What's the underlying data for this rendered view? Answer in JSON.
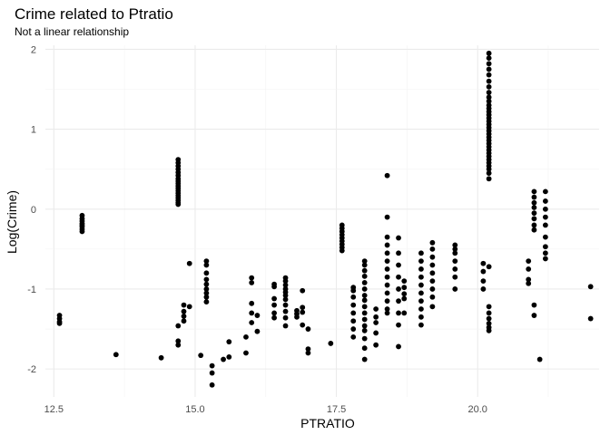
{
  "chart_data": {
    "type": "scatter",
    "title": "Crime related to Ptratio",
    "subtitle": "Not a linear relationship",
    "xlabel": "PTRATIO",
    "ylabel": "Log(Crime)",
    "xlim": [
      12.35,
      22.15
    ],
    "ylim": [
      -2.35,
      2.05
    ],
    "x_ticks": [
      12.5,
      15.0,
      17.5,
      20.0
    ],
    "x_tick_labels": [
      "12.5",
      "15.0",
      "17.5",
      "20.0"
    ],
    "y_ticks": [
      -2,
      -1,
      0,
      1,
      2
    ],
    "y_tick_labels": [
      "-2",
      "-1",
      "0",
      "1",
      "2"
    ],
    "grid": true,
    "point_color": "#000000",
    "columns": [
      {
        "x": 12.6,
        "y": [
          -1.33,
          -1.37,
          -1.41,
          -1.43
        ]
      },
      {
        "x": 13.0,
        "y": [
          -0.08,
          -0.12,
          -0.15,
          -0.18,
          -0.2,
          -0.22,
          -0.25,
          -0.28
        ]
      },
      {
        "x": 13.6,
        "y": [
          -1.82
        ]
      },
      {
        "x": 14.4,
        "y": [
          -1.86
        ]
      },
      {
        "x": 14.7,
        "y": [
          0.62,
          0.58,
          0.54,
          0.5,
          0.46,
          0.42,
          0.38,
          0.35,
          0.32,
          0.29,
          0.26,
          0.23,
          0.2,
          0.17,
          0.14,
          0.11,
          0.08,
          0.06,
          -1.46,
          -1.65,
          -1.7
        ]
      },
      {
        "x": 14.8,
        "y": [
          -1.2,
          -1.28,
          -1.34,
          -1.4
        ]
      },
      {
        "x": 14.9,
        "y": [
          -0.68,
          -1.22
        ]
      },
      {
        "x": 15.1,
        "y": [
          -1.83
        ]
      },
      {
        "x": 15.2,
        "y": [
          -0.65,
          -0.7,
          -0.8,
          -0.88,
          -0.94,
          -1.0,
          -1.05,
          -1.1,
          -1.16
        ]
      },
      {
        "x": 15.3,
        "y": [
          -1.96,
          -2.05,
          -2.2
        ]
      },
      {
        "x": 15.5,
        "y": [
          -1.88
        ]
      },
      {
        "x": 15.6,
        "y": [
          -1.66,
          -1.85
        ]
      },
      {
        "x": 15.9,
        "y": [
          -1.6,
          -1.8
        ]
      },
      {
        "x": 16.0,
        "y": [
          -0.86,
          -0.92,
          -1.18,
          -1.3,
          -1.42
        ]
      },
      {
        "x": 16.1,
        "y": [
          -1.33,
          -1.53
        ]
      },
      {
        "x": 16.4,
        "y": [
          -0.94,
          -0.97,
          -1.12,
          -1.2,
          -1.3,
          -1.36
        ]
      },
      {
        "x": 16.6,
        "y": [
          -0.86,
          -0.9,
          -0.95,
          -1.0,
          -1.04,
          -1.08,
          -1.13,
          -1.2,
          -1.28,
          -1.36,
          -1.46
        ]
      },
      {
        "x": 16.8,
        "y": [
          -1.27,
          -1.31,
          -1.35
        ]
      },
      {
        "x": 16.9,
        "y": [
          -1.02,
          -1.23,
          -1.29,
          -1.45
        ]
      },
      {
        "x": 17.0,
        "y": [
          -1.5,
          -1.75,
          -1.8
        ]
      },
      {
        "x": 17.4,
        "y": [
          -1.68
        ]
      },
      {
        "x": 17.6,
        "y": [
          -0.2,
          -0.24,
          -0.28,
          -0.32,
          -0.36,
          -0.4,
          -0.44,
          -0.48,
          -0.52
        ]
      },
      {
        "x": 17.8,
        "y": [
          -0.98,
          -1.02,
          -1.1,
          -1.2,
          -1.3,
          -1.4,
          -1.5,
          -1.6
        ]
      },
      {
        "x": 18.0,
        "y": [
          -0.65,
          -0.7,
          -0.77,
          -0.84,
          -0.92,
          -1.0,
          -1.08,
          -1.14,
          -1.22,
          -1.3,
          -1.38,
          -1.46,
          -1.52,
          -1.62,
          -1.74,
          -1.88
        ]
      },
      {
        "x": 18.2,
        "y": [
          -1.25,
          -1.35,
          -1.42,
          -1.55,
          -1.7
        ]
      },
      {
        "x": 18.4,
        "y": [
          0.42,
          -0.1,
          -0.35,
          -0.45,
          -0.55,
          -0.65,
          -0.75,
          -0.85,
          -0.95,
          -1.05,
          -1.15,
          -1.25,
          -1.3
        ]
      },
      {
        "x": 18.6,
        "y": [
          -0.36,
          -0.55,
          -0.7,
          -0.85,
          -1.0,
          -1.15,
          -1.3,
          -1.45,
          -1.72
        ]
      },
      {
        "x": 18.7,
        "y": [
          -0.9,
          -0.98,
          -1.06,
          -1.12,
          -1.3
        ]
      },
      {
        "x": 19.0,
        "y": [
          -0.55,
          -0.65,
          -0.75,
          -0.85,
          -0.95,
          -1.05,
          -1.15,
          -1.25,
          -1.35,
          -1.45
        ]
      },
      {
        "x": 19.2,
        "y": [
          -0.42,
          -0.5,
          -0.6,
          -0.7,
          -0.8,
          -0.9,
          -1.0,
          -1.1,
          -1.22
        ]
      },
      {
        "x": 19.6,
        "y": [
          -0.45,
          -0.5,
          -0.55,
          -0.65,
          -0.75,
          -0.85,
          -1.0
        ]
      },
      {
        "x": 20.1,
        "y": [
          -0.68,
          -0.78,
          -0.9,
          -1.0
        ]
      },
      {
        "x": 20.2,
        "y": [
          1.95,
          1.89,
          1.82,
          1.75,
          1.68,
          1.6,
          1.53,
          1.46,
          1.4,
          1.35,
          1.3,
          1.26,
          1.22,
          1.18,
          1.14,
          1.1,
          1.06,
          1.02,
          0.98,
          0.94,
          0.9,
          0.86,
          0.82,
          0.78,
          0.74,
          0.7,
          0.66,
          0.62,
          0.58,
          0.54,
          0.5,
          0.45,
          0.38,
          -0.72,
          -1.22,
          -1.3,
          -1.37,
          -1.43,
          -1.48,
          -1.52
        ]
      },
      {
        "x": 20.9,
        "y": [
          -0.65,
          -0.75,
          -0.88,
          -0.93
        ]
      },
      {
        "x": 21.0,
        "y": [
          0.22,
          0.15,
          0.08,
          0.02,
          -0.05,
          -0.12,
          -0.2,
          -0.26,
          -1.2,
          -1.33
        ]
      },
      {
        "x": 21.1,
        "y": [
          -1.88
        ]
      },
      {
        "x": 21.2,
        "y": [
          0.22,
          0.1,
          0.0,
          -0.1,
          -0.2,
          -0.35,
          -0.47,
          -0.55,
          -0.62
        ]
      },
      {
        "x": 22.0,
        "y": [
          -0.97,
          -1.37
        ]
      }
    ]
  }
}
